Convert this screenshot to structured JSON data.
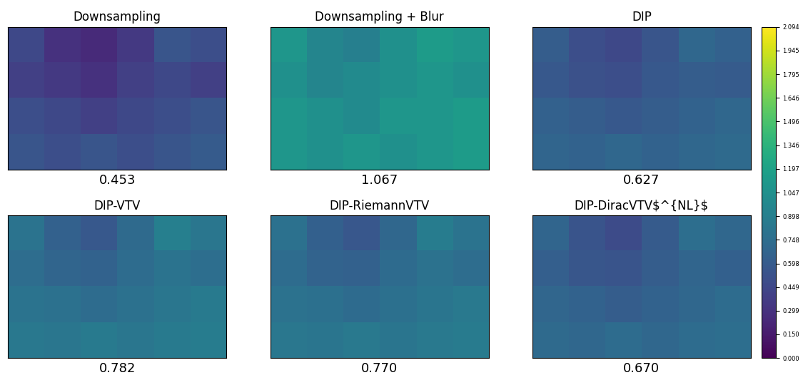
{
  "chart_data": [
    {
      "type": "heatmap",
      "title": "Downsampling",
      "score": {
        "value": 0.453,
        "label": "0.453"
      },
      "tick_labels": false,
      "color": "viridis",
      "cells": [
        [
          0.45,
          0.3,
          0.25,
          0.35,
          0.55,
          0.5
        ],
        [
          0.4,
          0.35,
          0.3,
          0.4,
          0.45,
          0.4
        ],
        [
          0.5,
          0.45,
          0.4,
          0.45,
          0.5,
          0.55
        ],
        [
          0.55,
          0.5,
          0.55,
          0.5,
          0.55,
          0.6
        ]
      ]
    },
    {
      "type": "heatmap",
      "title": "Downsampling + Blur",
      "score": {
        "value": 1.067,
        "label": "1.067"
      },
      "tick_labels": false,
      "color": "viridis",
      "cells": [
        [
          1.1,
          0.95,
          0.9,
          1.05,
          1.15,
          1.1
        ],
        [
          1.05,
          0.95,
          1.0,
          1.05,
          1.1,
          1.05
        ],
        [
          1.1,
          1.05,
          1.0,
          1.1,
          1.1,
          1.15
        ],
        [
          1.1,
          1.05,
          1.1,
          1.05,
          1.1,
          1.15
        ]
      ]
    },
    {
      "type": "heatmap",
      "title": "DIP",
      "score": {
        "value": 0.627,
        "label": "0.627"
      },
      "tick_labels": false,
      "color": "viridis",
      "cells": [
        [
          0.62,
          0.5,
          0.45,
          0.55,
          0.7,
          0.65
        ],
        [
          0.58,
          0.52,
          0.5,
          0.58,
          0.62,
          0.6
        ],
        [
          0.65,
          0.62,
          0.58,
          0.62,
          0.66,
          0.7
        ],
        [
          0.68,
          0.66,
          0.7,
          0.66,
          0.7,
          0.72
        ]
      ]
    },
    {
      "type": "heatmap",
      "title": "DIP-VTV",
      "score": {
        "value": 0.782,
        "label": "0.782"
      },
      "tick_labels": false,
      "color": "viridis",
      "cells": [
        [
          0.8,
          0.65,
          0.58,
          0.72,
          0.9,
          0.82
        ],
        [
          0.75,
          0.68,
          0.66,
          0.74,
          0.8,
          0.76
        ],
        [
          0.8,
          0.78,
          0.74,
          0.78,
          0.82,
          0.86
        ],
        [
          0.84,
          0.82,
          0.86,
          0.82,
          0.86,
          0.88
        ]
      ]
    },
    {
      "type": "heatmap",
      "title": "DIP-RiemannVTV",
      "score": {
        "value": 0.77,
        "label": "0.770"
      },
      "tick_labels": false,
      "color": "viridis",
      "cells": [
        [
          0.78,
          0.64,
          0.57,
          0.7,
          0.88,
          0.8
        ],
        [
          0.74,
          0.67,
          0.65,
          0.73,
          0.79,
          0.75
        ],
        [
          0.79,
          0.77,
          0.73,
          0.77,
          0.81,
          0.85
        ],
        [
          0.83,
          0.81,
          0.85,
          0.81,
          0.85,
          0.87
        ]
      ]
    },
    {
      "type": "heatmap",
      "title": "DIP-DiracVTV$^{NL}$",
      "score": {
        "value": 0.67,
        "label": "0.670"
      },
      "tick_labels": false,
      "color": "viridis",
      "cells": [
        [
          0.68,
          0.54,
          0.48,
          0.6,
          0.76,
          0.7
        ],
        [
          0.63,
          0.56,
          0.54,
          0.62,
          0.68,
          0.64
        ],
        [
          0.69,
          0.66,
          0.62,
          0.66,
          0.7,
          0.74
        ],
        [
          0.72,
          0.7,
          0.74,
          0.7,
          0.74,
          0.76
        ]
      ]
    }
  ],
  "colorbar": {
    "range": [
      0,
      2.094
    ],
    "ticks": [
      {
        "value": 0,
        "label": "0.000"
      },
      {
        "value": 0.15,
        "label": "0.150"
      },
      {
        "value": 0.299,
        "label": "0.299"
      },
      {
        "value": 0.449,
        "label": "0.449"
      },
      {
        "value": 0.598,
        "label": "0.598"
      },
      {
        "value": 0.748,
        "label": "0.748"
      },
      {
        "value": 0.898,
        "label": "0.898"
      },
      {
        "value": 1.047,
        "label": "1.047"
      },
      {
        "value": 1.197,
        "label": "1.197"
      },
      {
        "value": 1.346,
        "label": "1.346"
      },
      {
        "value": 1.496,
        "label": "1.496"
      },
      {
        "value": 1.646,
        "label": "1.646"
      },
      {
        "value": 1.795,
        "label": "1.795"
      },
      {
        "value": 1.945,
        "label": "1.945"
      },
      {
        "value": 2.094,
        "label": "2.094"
      }
    ]
  }
}
